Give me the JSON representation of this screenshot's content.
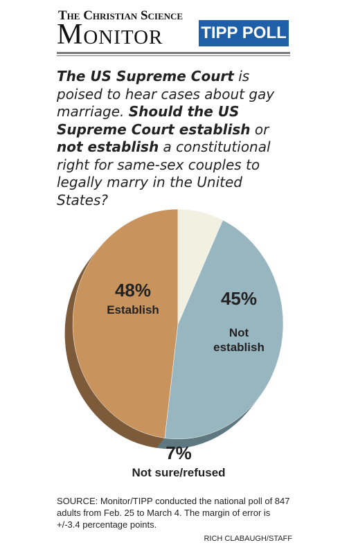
{
  "header": {
    "logo_top": "The Christian Science",
    "logo_main": "Monitor",
    "badge": "TIPP POLL"
  },
  "chart_data": {
    "type": "pie",
    "question": [
      "The US Supreme Court",
      " is poised to hear cases about gay marriage. ",
      "Should the US Supreme Court establish",
      " or ",
      "not establish",
      " a constitutional right for same-sex couples to legally marry in the United States?"
    ],
    "categories": [
      "Establish",
      "Not establish",
      "Not sure/refused"
    ],
    "values": [
      48,
      45,
      7
    ],
    "value_labels": [
      "48%",
      "45%",
      "7%"
    ],
    "colors": [
      "#c9935e",
      "#98b6bf",
      "#f2f0e0"
    ],
    "side_colors": [
      "#7c5b3b",
      "#5f7882",
      "#9d9d90"
    ]
  },
  "footer": {
    "source": "SOURCE: Monitor/TIPP conducted the national poll of 847 adults from Feb. 25 to March 4. The margin of error is +/-3.4 percentage points.",
    "credit": "RICH CLABAUGH/STAFF"
  }
}
